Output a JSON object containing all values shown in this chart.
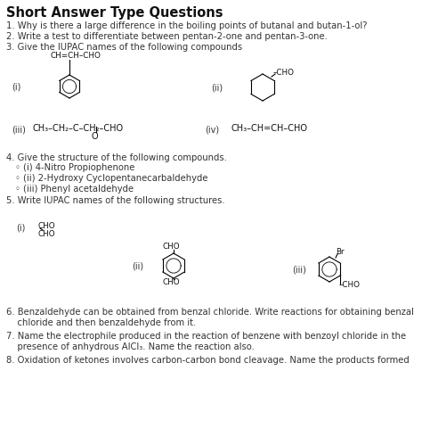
{
  "title": "Short Answer Type Questions",
  "background_color": "#ffffff",
  "figsize": [
    4.74,
    4.9
  ],
  "dpi": 100,
  "q1": "1. Why is there a large difference in the boiling points of butanal and butan-1-ol?",
  "q2": "2. Write a test to differentiate between pentan-2-one and pentan-3-one.",
  "q3": "3. Give the IUPAC names of the following compounds",
  "q4_header": "4. Give the structure of the following compounds.",
  "q4_items": [
    "◦ (i) 4-Nitro Propiophenone",
    "◦ (ii) 2-Hydroxy Cyclopentanecarbaldehyde",
    "◦ (iii) Phenyl acetaldehyde"
  ],
  "q5_header": "5. Write IUPAC names of the following structures.",
  "q6_line1": "6. Benzaldehyde can be obtained from benzal chloride. Write reactions for obtaining benzal",
  "q6_line2": "    chloride and then benzaldehyde from it.",
  "q7_line1": "7. Name the electrophile produced in the reaction of benzene with benzoyl chloride in the",
  "q7_line2": "    presence of anhydrous AlCl₃. Name the reaction also.",
  "q8": "8. Oxidation of ketones involves carbon-carbon bond cleavage. Name the products formed"
}
